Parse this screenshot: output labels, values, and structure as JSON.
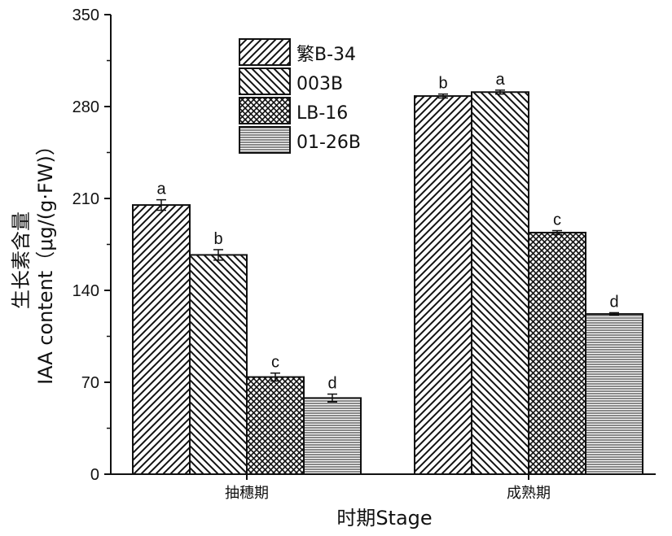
{
  "chart_data": {
    "type": "bar",
    "xlabel_cn": "时期",
    "xlabel_en": "Stage",
    "ylabel_cn": "生长素含量",
    "ylabel_en": "IAA content（μg/(g·FW)）",
    "ylim": [
      0,
      350
    ],
    "yticks": [
      0,
      70,
      140,
      210,
      280,
      350
    ],
    "categories": [
      "抽穗期",
      "成熟期"
    ],
    "series": [
      {
        "name": "繁B-34",
        "pattern": "hatch-fwd",
        "values": [
          205,
          288
        ],
        "errors": [
          4,
          1.5
        ],
        "labels": [
          "a",
          "b"
        ]
      },
      {
        "name": "003B",
        "pattern": "hatch-back",
        "values": [
          167,
          291
        ],
        "errors": [
          4,
          1.5
        ],
        "labels": [
          "b",
          "a"
        ]
      },
      {
        "name": "LB-16",
        "pattern": "crosshatch",
        "values": [
          74,
          184
        ],
        "errors": [
          3,
          1.5
        ],
        "labels": [
          "c",
          "c"
        ]
      },
      {
        "name": "01-26B",
        "pattern": "horizontal",
        "values": [
          58,
          122
        ],
        "errors": [
          3,
          1
        ],
        "labels": [
          "d",
          "d"
        ]
      }
    ],
    "legend_position": "top-center",
    "grid": false
  }
}
